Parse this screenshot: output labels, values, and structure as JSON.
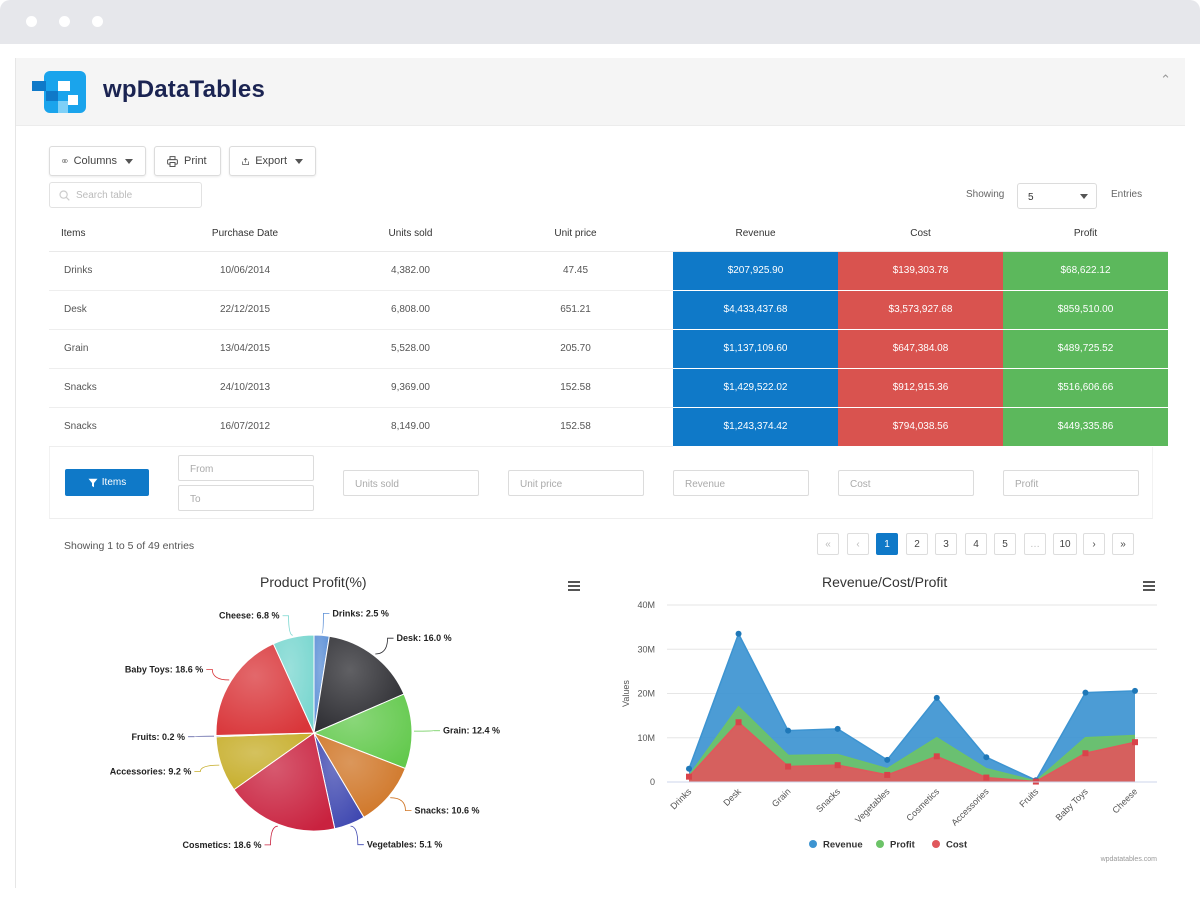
{
  "app": {
    "brand": "wpDataTables"
  },
  "toolbar": {
    "columns_label": "Columns",
    "print_label": "Print",
    "export_label": "Export"
  },
  "search": {
    "placeholder": "Search table"
  },
  "length": {
    "showing_label": "Showing",
    "value": "5",
    "entries_label": "Entries"
  },
  "table": {
    "headers": [
      "Items",
      "Purchase Date",
      "Units sold",
      "Unit price",
      "Revenue",
      "Cost",
      "Profit"
    ],
    "rows": [
      [
        "Drinks",
        "10/06/2014",
        "4,382.00",
        "47.45",
        "$207,925.90",
        "$139,303.78",
        "$68,622.12"
      ],
      [
        "Desk",
        "22/12/2015",
        "6,808.00",
        "651.21",
        "$4,433,437.68",
        "$3,573,927.68",
        "$859,510.00"
      ],
      [
        "Grain",
        "13/04/2015",
        "5,528.00",
        "205.70",
        "$1,137,109.60",
        "$647,384.08",
        "$489,725.52"
      ],
      [
        "Snacks",
        "24/10/2013",
        "9,369.00",
        "152.58",
        "$1,429,522.02",
        "$912,915.36",
        "$516,606.66"
      ],
      [
        "Snacks",
        "16/07/2012",
        "8,149.00",
        "152.58",
        "$1,243,374.42",
        "$794,038.56",
        "$449,335.86"
      ]
    ],
    "colors": {
      "revenue": "#0f79c8",
      "cost": "#d9534f",
      "profit": "#5cb85c"
    }
  },
  "filters": {
    "button_label": "Items",
    "from_placeholder": "From",
    "to_placeholder": "To",
    "units_placeholder": "Units sold",
    "price_placeholder": "Unit price",
    "revenue_placeholder": "Revenue",
    "cost_placeholder": "Cost",
    "profit_placeholder": "Profit"
  },
  "pagination": {
    "info": "Showing 1 to 5 of 49 entries",
    "pages": [
      "1",
      "2",
      "3",
      "4",
      "5",
      "…",
      "10"
    ],
    "active_page": "1"
  },
  "chart_data": [
    {
      "type": "pie",
      "title": "Product Profit(%)",
      "slices": [
        {
          "label": "Drinks: 2.5 %",
          "value": 2.5,
          "color": "#5b8fd6"
        },
        {
          "label": "Desk: 16.0 %",
          "value": 16.0,
          "color": "#2b2b30"
        },
        {
          "label": "Grain: 12.4 %",
          "value": 12.4,
          "color": "#62c94c"
        },
        {
          "label": "Snacks: 10.6 %",
          "value": 10.6,
          "color": "#cf7424"
        },
        {
          "label": "Vegetables: 5.1 %",
          "value": 5.1,
          "color": "#3e47b0"
        },
        {
          "label": "Cosmetics: 18.6 %",
          "value": 18.6,
          "color": "#c9223f"
        },
        {
          "label": "Accessories: 9.2 %",
          "value": 9.2,
          "color": "#c6ad28"
        },
        {
          "label": "Fruits: 0.2 %",
          "value": 0.2,
          "color": "#4a4f9a"
        },
        {
          "label": "Baby Toys: 18.6 %",
          "value": 18.6,
          "color": "#d9363a"
        },
        {
          "label": "Cheese: 6.8 %",
          "value": 6.8,
          "color": "#78d6cf"
        }
      ]
    },
    {
      "type": "area",
      "title": "Revenue/Cost/Profit",
      "ylabel": "Values",
      "categories": [
        "Drinks",
        "Desk",
        "Grain",
        "Snacks",
        "Vegetables",
        "Cosmetics",
        "Accessories",
        "Fruits",
        "Baby Toys",
        "Cheese"
      ],
      "ylim": [
        0,
        40
      ],
      "yticks": [
        "0",
        "10M",
        "20M",
        "30M",
        "40M"
      ],
      "series": [
        {
          "name": "Revenue",
          "color": "#3d94d1",
          "values": [
            3,
            33.5,
            11.6,
            12,
            5,
            19,
            5.6,
            0.4,
            20.2,
            20.6
          ]
        },
        {
          "name": "Profit",
          "color": "#6cc368",
          "values": [
            1.4,
            17,
            6,
            6.2,
            3,
            10,
            3,
            0.2,
            10,
            10.5
          ]
        },
        {
          "name": "Cost",
          "color": "#e0585c",
          "values": [
            1.2,
            13.5,
            3.5,
            3.8,
            1.6,
            5.8,
            1,
            0.1,
            6.5,
            9
          ]
        }
      ],
      "credit": "wpdatatables.com"
    }
  ]
}
